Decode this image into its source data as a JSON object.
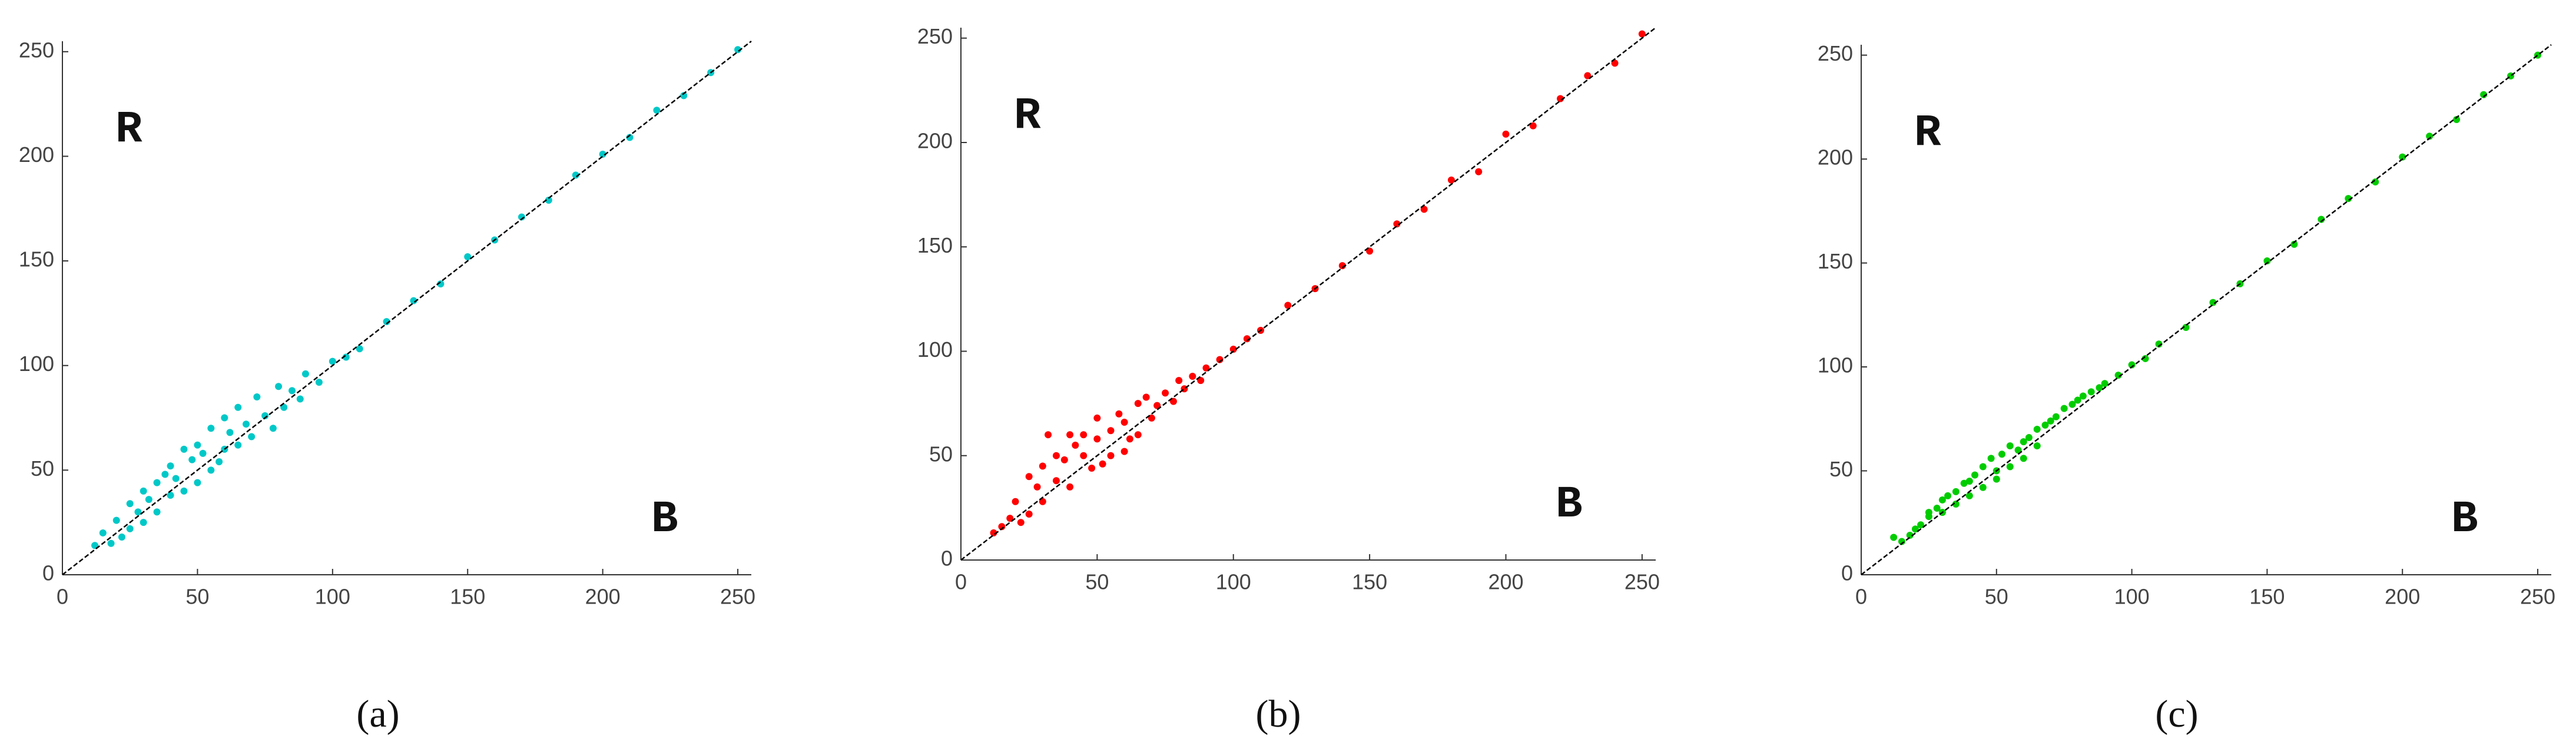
{
  "chart_data": [
    {
      "type": "scatter",
      "caption": "(a)",
      "annotations": [
        "R",
        "B"
      ],
      "color": "#00c8c8",
      "xlim": [
        0,
        255
      ],
      "ylim": [
        0,
        255
      ],
      "xticks": [
        0,
        50,
        100,
        150,
        200,
        250
      ],
      "yticks": [
        0,
        50,
        100,
        150,
        200,
        250
      ],
      "x": [
        12,
        15,
        18,
        20,
        22,
        25,
        25,
        28,
        30,
        30,
        32,
        35,
        35,
        38,
        40,
        40,
        42,
        45,
        45,
        48,
        50,
        50,
        52,
        55,
        55,
        58,
        60,
        60,
        62,
        65,
        65,
        68,
        70,
        72,
        75,
        78,
        80,
        82,
        85,
        88,
        90,
        95,
        100,
        105,
        110,
        120,
        130,
        140,
        150,
        160,
        170,
        180,
        190,
        200,
        210,
        220,
        230,
        240,
        250
      ],
      "y": [
        14,
        20,
        15,
        26,
        18,
        34,
        22,
        30,
        40,
        25,
        36,
        44,
        30,
        48,
        38,
        52,
        46,
        60,
        40,
        55,
        62,
        44,
        58,
        70,
        50,
        54,
        75,
        60,
        68,
        62,
        80,
        72,
        66,
        85,
        76,
        70,
        90,
        80,
        88,
        84,
        96,
        92,
        102,
        104,
        108,
        121,
        131,
        139,
        152,
        160,
        171,
        179,
        191,
        201,
        209,
        222,
        229,
        240,
        251
      ]
    },
    {
      "type": "scatter",
      "caption": "(b)",
      "annotations": [
        "R",
        "B"
      ],
      "color": "#ff0000",
      "xlim": [
        0,
        255
      ],
      "ylim": [
        0,
        255
      ],
      "xticks": [
        0,
        50,
        100,
        150,
        200,
        250
      ],
      "yticks": [
        0,
        50,
        100,
        150,
        200,
        250
      ],
      "x": [
        12,
        15,
        18,
        20,
        22,
        25,
        25,
        28,
        30,
        30,
        32,
        35,
        35,
        38,
        40,
        40,
        42,
        45,
        45,
        48,
        50,
        50,
        52,
        55,
        55,
        58,
        60,
        60,
        62,
        65,
        65,
        68,
        70,
        72,
        75,
        78,
        80,
        82,
        85,
        88,
        90,
        95,
        100,
        105,
        110,
        120,
        130,
        140,
        150,
        160,
        170,
        180,
        190,
        200,
        210,
        220,
        230,
        240,
        250
      ],
      "y": [
        13,
        16,
        20,
        28,
        18,
        40,
        22,
        35,
        45,
        28,
        60,
        38,
        50,
        48,
        60,
        35,
        55,
        50,
        60,
        44,
        58,
        68,
        46,
        62,
        50,
        70,
        52,
        66,
        58,
        75,
        60,
        78,
        68,
        74,
        80,
        76,
        86,
        82,
        88,
        86,
        92,
        96,
        101,
        106,
        110,
        122,
        130,
        141,
        148,
        161,
        168,
        182,
        186,
        204,
        208,
        221,
        232,
        238,
        252
      ]
    },
    {
      "type": "scatter",
      "caption": "(c)",
      "annotations": [
        "R",
        "B"
      ],
      "color": "#00cc00",
      "xlim": [
        0,
        255
      ],
      "ylim": [
        0,
        255
      ],
      "xticks": [
        0,
        50,
        100,
        150,
        200,
        250
      ],
      "yticks": [
        0,
        50,
        100,
        150,
        200,
        250
      ],
      "x": [
        12,
        15,
        18,
        20,
        22,
        25,
        25,
        28,
        30,
        30,
        32,
        35,
        35,
        38,
        40,
        40,
        42,
        45,
        45,
        48,
        50,
        50,
        52,
        55,
        55,
        58,
        60,
        60,
        62,
        65,
        65,
        68,
        70,
        72,
        75,
        78,
        80,
        82,
        85,
        88,
        90,
        95,
        100,
        105,
        110,
        120,
        130,
        140,
        150,
        160,
        170,
        180,
        190,
        200,
        210,
        220,
        230,
        240,
        250
      ],
      "y": [
        18,
        16,
        19,
        22,
        24,
        28,
        30,
        32,
        36,
        30,
        38,
        40,
        34,
        44,
        45,
        38,
        48,
        52,
        42,
        56,
        50,
        46,
        58,
        62,
        52,
        60,
        64,
        56,
        66,
        70,
        62,
        72,
        74,
        76,
        80,
        82,
        84,
        86,
        88,
        90,
        92,
        96,
        101,
        104,
        111,
        119,
        131,
        140,
        151,
        159,
        171,
        181,
        189,
        201,
        211,
        219,
        231,
        240,
        250
      ]
    }
  ]
}
